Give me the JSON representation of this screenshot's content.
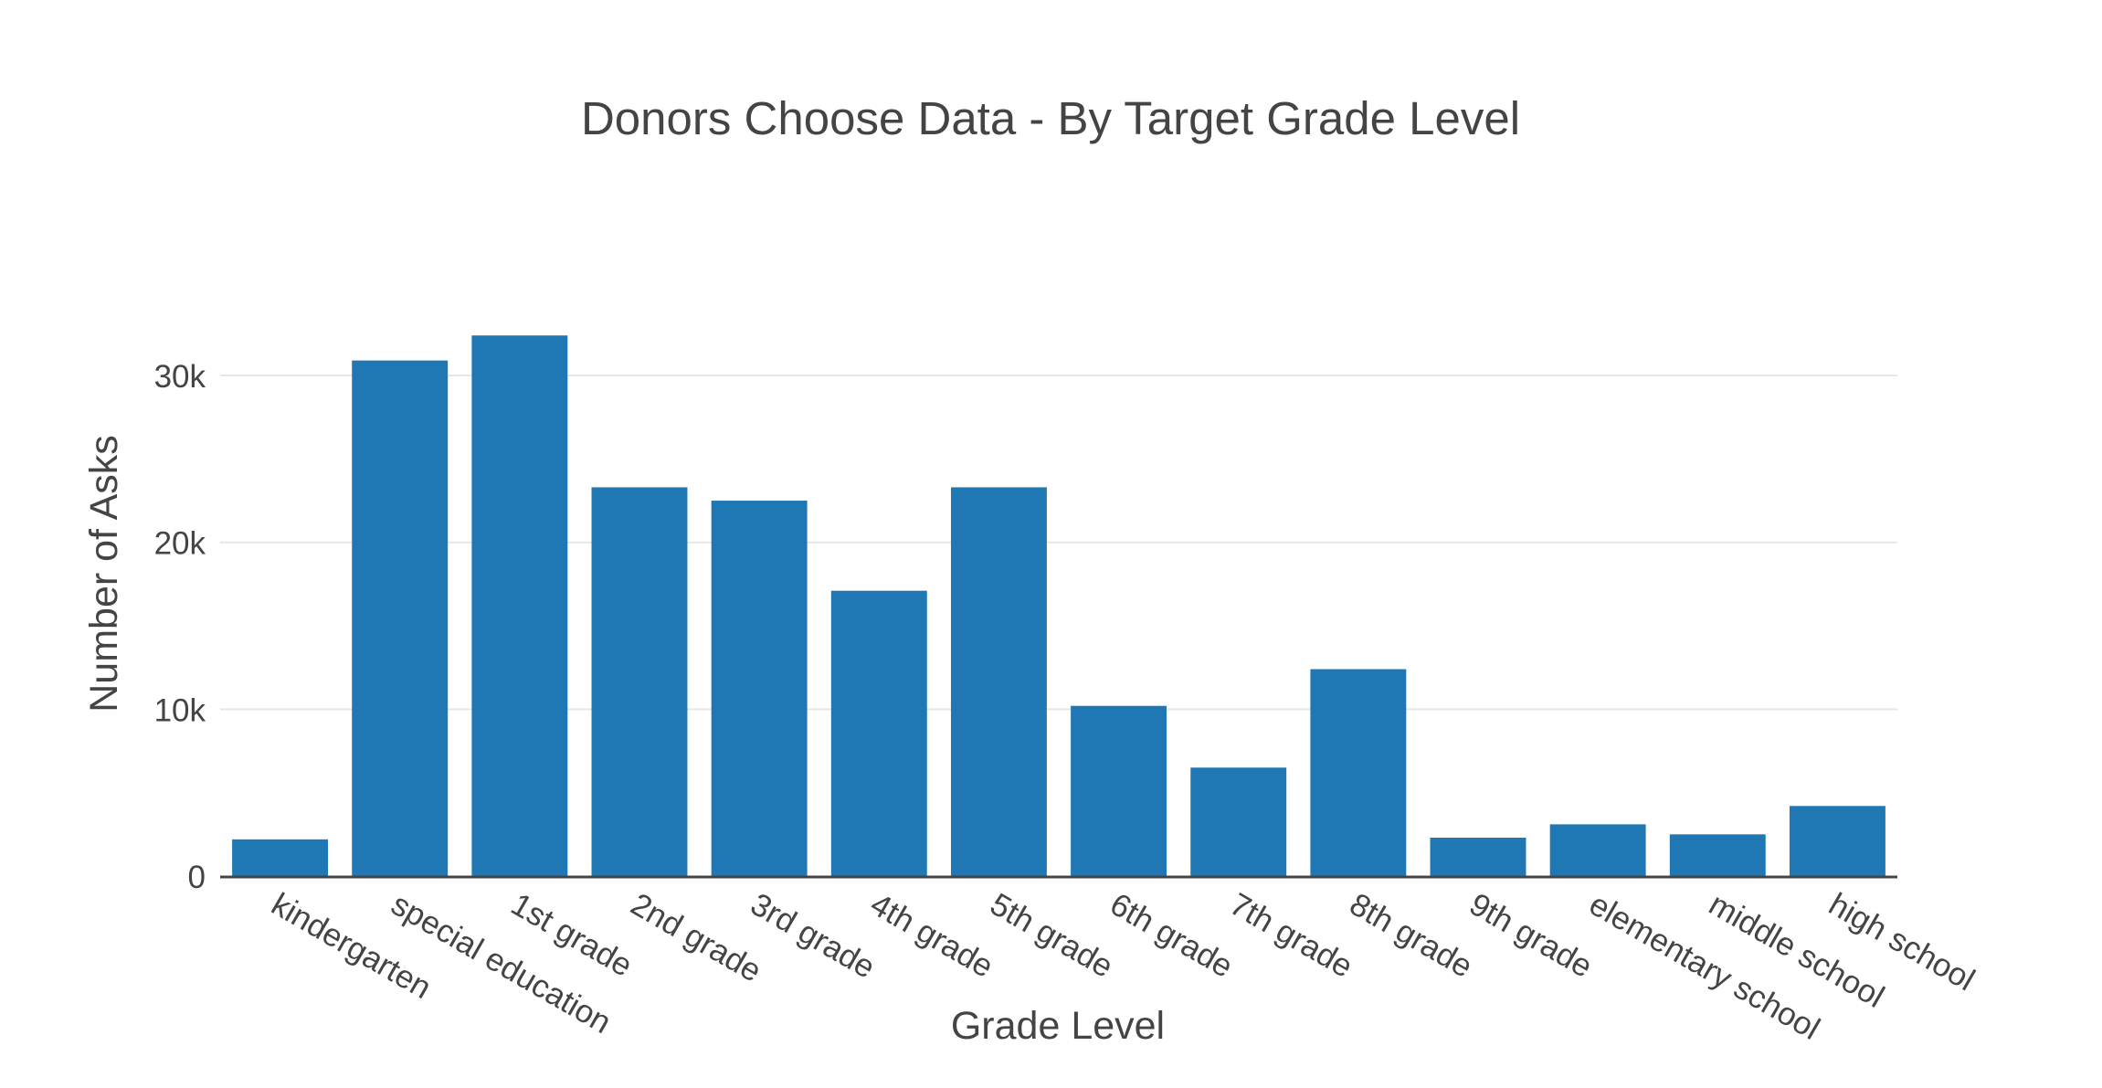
{
  "chart_data": {
    "type": "bar",
    "title": "Donors Choose Data - By Target Grade Level",
    "xlabel": "Grade Level",
    "ylabel": "Number of Asks",
    "categories": [
      "kindergarten",
      "special education",
      "1st grade",
      "2nd grade",
      "3rd grade",
      "4th grade",
      "5th grade",
      "6th grade",
      "7th grade",
      "8th grade",
      "9th grade",
      "elementary school",
      "middle school",
      "high school"
    ],
    "values": [
      2200,
      30900,
      32400,
      23300,
      22500,
      17100,
      23300,
      10200,
      6500,
      12400,
      2300,
      3100,
      2500,
      4200
    ],
    "ylim": [
      0,
      34000
    ],
    "yticks": [
      0,
      10000,
      20000,
      30000
    ],
    "ytick_labels": [
      "0",
      "10k",
      "20k",
      "30k"
    ],
    "grid": true,
    "bar_color": "#1f77b4"
  }
}
